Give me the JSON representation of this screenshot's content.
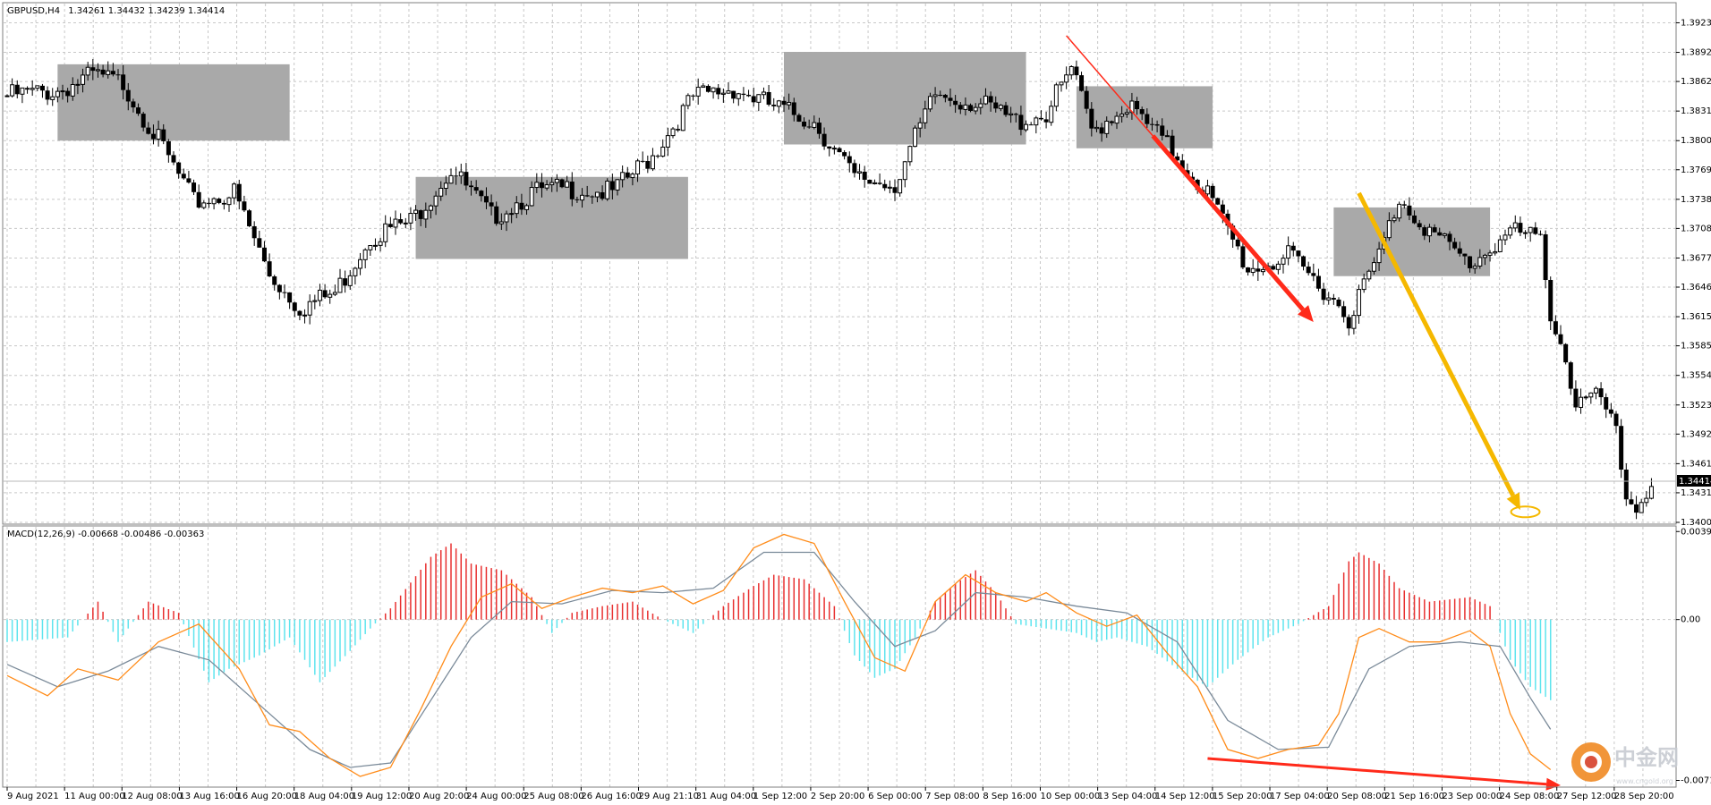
{
  "header": {
    "symbol": "GBPUSD,H4",
    "ohlc": "1.34261 1.34432 1.34239 1.34414",
    "macd_label": "MACD(12,26,9) -0.00668 -0.00486 -0.00363"
  },
  "colors": {
    "background": "#ffffff",
    "grid": "#c8c8c8",
    "candle": "#000000",
    "zone": "#a9a9a9",
    "arrow_red": "#ff2a1a",
    "arrow_gold": "#f5b800",
    "macd_line": "#ff8c1a",
    "signal_line": "#7a8a99",
    "hist_positive": "#e83030",
    "hist_negative": "#5ee4ee"
  },
  "chart_data": [
    {
      "type": "candlestick",
      "title": "GBPUSD,H4",
      "ohlc_label": "1.34261 1.34432 1.34239 1.34414",
      "ylim": [
        1.34,
        1.3938
      ],
      "y_ticks": [
        "1.39235",
        "1.38925",
        "1.38620",
        "1.38310",
        "1.38000",
        "1.37695",
        "1.37385",
        "1.37080",
        "1.36770",
        "1.36465",
        "1.36155",
        "1.35850",
        "1.35540",
        "1.35230",
        "1.34925",
        "1.34615",
        "1.34310",
        "1.34000"
      ],
      "current_price": "1.34414",
      "x_labels": [
        "9 Aug 2021",
        "11 Aug 00:00",
        "12 Aug 08:00",
        "13 Aug 16:00",
        "16 Aug 20:00",
        "18 Aug 04:00",
        "19 Aug 12:00",
        "20 Aug 20:00",
        "24 Aug 00:00",
        "25 Aug 08:00",
        "26 Aug 16:00",
        "29 Aug 21:10",
        "31 Aug 04:00",
        "1 Sep 12:00",
        "2 Sep 20:00",
        "6 Sep 00:00",
        "7 Sep 08:00",
        "8 Sep 16:00",
        "10 Sep 00:00",
        "13 Sep 04:00",
        "14 Sep 12:00",
        "15 Sep 20:00",
        "17 Sep 04:00",
        "20 Sep 08:00",
        "21 Sep 16:00",
        "23 Sep 00:00",
        "24 Sep 08:00",
        "27 Sep 12:00",
        "28 Sep 20:00"
      ],
      "key_closes": [
        {
          "bar": 0,
          "close": 1.3847
        },
        {
          "bar": 10,
          "close": 1.3852
        },
        {
          "bar": 17,
          "close": 1.3868
        },
        {
          "bar": 23,
          "close": 1.386
        },
        {
          "bar": 30,
          "close": 1.38
        },
        {
          "bar": 37,
          "close": 1.3735
        },
        {
          "bar": 45,
          "close": 1.3745
        },
        {
          "bar": 52,
          "close": 1.366
        },
        {
          "bar": 58,
          "close": 1.3625
        },
        {
          "bar": 65,
          "close": 1.364
        },
        {
          "bar": 72,
          "close": 1.37
        },
        {
          "bar": 80,
          "close": 1.3715
        },
        {
          "bar": 88,
          "close": 1.377
        },
        {
          "bar": 96,
          "close": 1.372
        },
        {
          "bar": 104,
          "close": 1.3745
        },
        {
          "bar": 112,
          "close": 1.375
        },
        {
          "bar": 120,
          "close": 1.3745
        },
        {
          "bar": 128,
          "close": 1.3785
        },
        {
          "bar": 136,
          "close": 1.3845
        },
        {
          "bar": 144,
          "close": 1.3855
        },
        {
          "bar": 152,
          "close": 1.3835
        },
        {
          "bar": 160,
          "close": 1.382
        },
        {
          "bar": 168,
          "close": 1.376
        },
        {
          "bar": 176,
          "close": 1.3755
        },
        {
          "bar": 184,
          "close": 1.3848
        },
        {
          "bar": 192,
          "close": 1.384
        },
        {
          "bar": 200,
          "close": 1.382
        },
        {
          "bar": 206,
          "close": 1.3828
        },
        {
          "bar": 211,
          "close": 1.3875
        },
        {
          "bar": 215,
          "close": 1.381
        },
        {
          "bar": 222,
          "close": 1.3838
        },
        {
          "bar": 230,
          "close": 1.3795
        },
        {
          "bar": 238,
          "close": 1.3745
        },
        {
          "bar": 246,
          "close": 1.3665
        },
        {
          "bar": 254,
          "close": 1.3678
        },
        {
          "bar": 262,
          "close": 1.364
        },
        {
          "bar": 266,
          "close": 1.3615
        },
        {
          "bar": 272,
          "close": 1.368
        },
        {
          "bar": 276,
          "close": 1.374
        },
        {
          "bar": 282,
          "close": 1.3705
        },
        {
          "bar": 290,
          "close": 1.367
        },
        {
          "bar": 298,
          "close": 1.3705
        },
        {
          "bar": 304,
          "close": 1.3695
        },
        {
          "bar": 306,
          "close": 1.362
        },
        {
          "bar": 308,
          "close": 1.359
        },
        {
          "bar": 311,
          "close": 1.3525
        },
        {
          "bar": 316,
          "close": 1.353
        },
        {
          "bar": 319,
          "close": 1.349
        },
        {
          "bar": 321,
          "close": 1.3425
        },
        {
          "bar": 323,
          "close": 1.3418
        },
        {
          "bar": 326,
          "close": 1.3441
        }
      ],
      "zones": [
        {
          "bar_start": 10,
          "bar_end": 56,
          "price_top": 1.388,
          "price_bottom": 1.38
        },
        {
          "bar_start": 81,
          "bar_end": 135,
          "price_top": 1.3762,
          "price_bottom": 1.3676
        },
        {
          "bar_start": 154,
          "bar_end": 202,
          "price_top": 1.3893,
          "price_bottom": 1.3796
        },
        {
          "bar_start": 212,
          "bar_end": 239,
          "price_top": 1.3857,
          "price_bottom": 1.3792
        },
        {
          "bar_start": 263,
          "bar_end": 294,
          "price_top": 1.373,
          "price_bottom": 1.3658
        }
      ],
      "arrows": [
        {
          "color": "red",
          "from": {
            "bar": 210,
            "price": 1.391
          },
          "to": {
            "bar": 259,
            "price": 1.361
          }
        },
        {
          "color": "gold",
          "from": {
            "bar": 268,
            "price": 1.3745
          },
          "to": {
            "bar": 300,
            "price": 1.3413
          }
        }
      ],
      "ellipse": {
        "bar": 301,
        "price": 1.3411
      }
    },
    {
      "type": "macd",
      "title": "MACD(12,26,9) -0.00668 -0.00486 -0.00363",
      "ylim": [
        -0.0074,
        0.0041
      ],
      "y_ticks": [
        "0.00393",
        "0.00",
        "-0.00718"
      ],
      "series": [
        {
          "name": "MACD",
          "points": [
            {
              "bar": 0,
              "value": -0.0025
            },
            {
              "bar": 8,
              "value": -0.0034
            },
            {
              "bar": 14,
              "value": -0.0022
            },
            {
              "bar": 22,
              "value": -0.0027
            },
            {
              "bar": 30,
              "value": -0.001
            },
            {
              "bar": 38,
              "value": -0.0002
            },
            {
              "bar": 46,
              "value": -0.0022
            },
            {
              "bar": 52,
              "value": -0.0047
            },
            {
              "bar": 58,
              "value": -0.005
            },
            {
              "bar": 64,
              "value": -0.0062
            },
            {
              "bar": 70,
              "value": -0.007
            },
            {
              "bar": 76,
              "value": -0.0066
            },
            {
              "bar": 82,
              "value": -0.004
            },
            {
              "bar": 88,
              "value": -0.0012
            },
            {
              "bar": 94,
              "value": 0.001
            },
            {
              "bar": 100,
              "value": 0.0016
            },
            {
              "bar": 106,
              "value": 0.0005
            },
            {
              "bar": 112,
              "value": 0.001
            },
            {
              "bar": 118,
              "value": 0.0014
            },
            {
              "bar": 124,
              "value": 0.0012
            },
            {
              "bar": 130,
              "value": 0.0015
            },
            {
              "bar": 136,
              "value": 0.0007
            },
            {
              "bar": 142,
              "value": 0.0013
            },
            {
              "bar": 148,
              "value": 0.0032
            },
            {
              "bar": 154,
              "value": 0.0038
            },
            {
              "bar": 160,
              "value": 0.0034
            },
            {
              "bar": 166,
              "value": 0.0008
            },
            {
              "bar": 172,
              "value": -0.0017
            },
            {
              "bar": 178,
              "value": -0.0023
            },
            {
              "bar": 184,
              "value": 0.0008
            },
            {
              "bar": 190,
              "value": 0.002
            },
            {
              "bar": 196,
              "value": 0.0012
            },
            {
              "bar": 202,
              "value": 0.0008
            },
            {
              "bar": 206,
              "value": 0.0012
            },
            {
              "bar": 212,
              "value": 0.0003
            },
            {
              "bar": 218,
              "value": -0.0003
            },
            {
              "bar": 224,
              "value": 0.0002
            },
            {
              "bar": 230,
              "value": -0.0015
            },
            {
              "bar": 236,
              "value": -0.003
            },
            {
              "bar": 242,
              "value": -0.0058
            },
            {
              "bar": 248,
              "value": -0.0062
            },
            {
              "bar": 254,
              "value": -0.0058
            },
            {
              "bar": 260,
              "value": -0.0056
            },
            {
              "bar": 264,
              "value": -0.0042
            },
            {
              "bar": 268,
              "value": -0.0008
            },
            {
              "bar": 272,
              "value": -0.0004
            },
            {
              "bar": 278,
              "value": -0.001
            },
            {
              "bar": 284,
              "value": -0.001
            },
            {
              "bar": 290,
              "value": -0.0005
            },
            {
              "bar": 294,
              "value": -0.0012
            },
            {
              "bar": 298,
              "value": -0.0042
            },
            {
              "bar": 302,
              "value": -0.006
            },
            {
              "bar": 306,
              "value": -0.0067
            }
          ]
        },
        {
          "name": "Signal",
          "points": [
            {
              "bar": 0,
              "value": -0.002
            },
            {
              "bar": 10,
              "value": -0.003
            },
            {
              "bar": 20,
              "value": -0.0023
            },
            {
              "bar": 30,
              "value": -0.0012
            },
            {
              "bar": 40,
              "value": -0.0018
            },
            {
              "bar": 50,
              "value": -0.0038
            },
            {
              "bar": 60,
              "value": -0.0058
            },
            {
              "bar": 68,
              "value": -0.0066
            },
            {
              "bar": 76,
              "value": -0.0064
            },
            {
              "bar": 84,
              "value": -0.0036
            },
            {
              "bar": 92,
              "value": -0.0008
            },
            {
              "bar": 100,
              "value": 0.0008
            },
            {
              "bar": 110,
              "value": 0.0007
            },
            {
              "bar": 120,
              "value": 0.0013
            },
            {
              "bar": 130,
              "value": 0.0012
            },
            {
              "bar": 140,
              "value": 0.0014
            },
            {
              "bar": 150,
              "value": 0.003
            },
            {
              "bar": 160,
              "value": 0.003
            },
            {
              "bar": 168,
              "value": 0.0008
            },
            {
              "bar": 176,
              "value": -0.0012
            },
            {
              "bar": 184,
              "value": -0.0005
            },
            {
              "bar": 192,
              "value": 0.0012
            },
            {
              "bar": 202,
              "value": 0.001
            },
            {
              "bar": 212,
              "value": 0.0006
            },
            {
              "bar": 222,
              "value": 0.0003
            },
            {
              "bar": 232,
              "value": -0.001
            },
            {
              "bar": 242,
              "value": -0.0045
            },
            {
              "bar": 252,
              "value": -0.0058
            },
            {
              "bar": 262,
              "value": -0.0057
            },
            {
              "bar": 270,
              "value": -0.0022
            },
            {
              "bar": 278,
              "value": -0.0012
            },
            {
              "bar": 288,
              "value": -0.001
            },
            {
              "bar": 296,
              "value": -0.0012
            },
            {
              "bar": 302,
              "value": -0.0035
            },
            {
              "bar": 306,
              "value": -0.0049
            }
          ]
        }
      ],
      "histogram_points": [
        {
          "bar": 0,
          "value": -0.001
        },
        {
          "bar": 12,
          "value": -0.0008
        },
        {
          "bar": 18,
          "value": 0.0008
        },
        {
          "bar": 22,
          "value": -0.001
        },
        {
          "bar": 28,
          "value": 0.0008
        },
        {
          "bar": 34,
          "value": 0.0003
        },
        {
          "bar": 40,
          "value": -0.0028
        },
        {
          "bar": 44,
          "value": -0.0022
        },
        {
          "bar": 50,
          "value": -0.0016
        },
        {
          "bar": 56,
          "value": -0.0008
        },
        {
          "bar": 62,
          "value": -0.0028
        },
        {
          "bar": 68,
          "value": -0.0014
        },
        {
          "bar": 72,
          "value": -0.0004
        },
        {
          "bar": 76,
          "value": 0.0005
        },
        {
          "bar": 84,
          "value": 0.0028
        },
        {
          "bar": 88,
          "value": 0.0034
        },
        {
          "bar": 92,
          "value": 0.0025
        },
        {
          "bar": 98,
          "value": 0.0022
        },
        {
          "bar": 104,
          "value": 0.001
        },
        {
          "bar": 108,
          "value": -0.0006
        },
        {
          "bar": 112,
          "value": 0.0003
        },
        {
          "bar": 118,
          "value": 0.0006
        },
        {
          "bar": 124,
          "value": 0.0008
        },
        {
          "bar": 130,
          "value": 0.0
        },
        {
          "bar": 136,
          "value": -0.0006
        },
        {
          "bar": 142,
          "value": 0.0006
        },
        {
          "bar": 148,
          "value": 0.0015
        },
        {
          "bar": 152,
          "value": 0.002
        },
        {
          "bar": 158,
          "value": 0.0018
        },
        {
          "bar": 164,
          "value": 0.0006
        },
        {
          "bar": 168,
          "value": -0.0016
        },
        {
          "bar": 172,
          "value": -0.0026
        },
        {
          "bar": 176,
          "value": -0.0022
        },
        {
          "bar": 180,
          "value": -0.0008
        },
        {
          "bar": 184,
          "value": 0.0008
        },
        {
          "bar": 188,
          "value": 0.0016
        },
        {
          "bar": 192,
          "value": 0.0022
        },
        {
          "bar": 196,
          "value": 0.0012
        },
        {
          "bar": 200,
          "value": -0.0002
        },
        {
          "bar": 206,
          "value": -0.0004
        },
        {
          "bar": 212,
          "value": -0.0006
        },
        {
          "bar": 216,
          "value": -0.001
        },
        {
          "bar": 220,
          "value": -0.0008
        },
        {
          "bar": 226,
          "value": -0.0012
        },
        {
          "bar": 232,
          "value": -0.0022
        },
        {
          "bar": 238,
          "value": -0.003
        },
        {
          "bar": 244,
          "value": -0.0018
        },
        {
          "bar": 250,
          "value": -0.0008
        },
        {
          "bar": 256,
          "value": -0.0002
        },
        {
          "bar": 262,
          "value": 0.0006
        },
        {
          "bar": 266,
          "value": 0.0026
        },
        {
          "bar": 268,
          "value": 0.003
        },
        {
          "bar": 272,
          "value": 0.0025
        },
        {
          "bar": 276,
          "value": 0.0014
        },
        {
          "bar": 282,
          "value": 0.0008
        },
        {
          "bar": 290,
          "value": 0.001
        },
        {
          "bar": 294,
          "value": 0.0006
        },
        {
          "bar": 298,
          "value": -0.0018
        },
        {
          "bar": 302,
          "value": -0.003
        },
        {
          "bar": 306,
          "value": -0.0036
        }
      ],
      "divergence_arrow": {
        "color": "red",
        "from": {
          "bar": 238,
          "value": -0.0062
        },
        "to": {
          "bar": 308,
          "value": -0.0074
        }
      }
    }
  ],
  "watermark": {
    "brand_cn": "中金网",
    "brand_small": "www.cngold.org"
  }
}
